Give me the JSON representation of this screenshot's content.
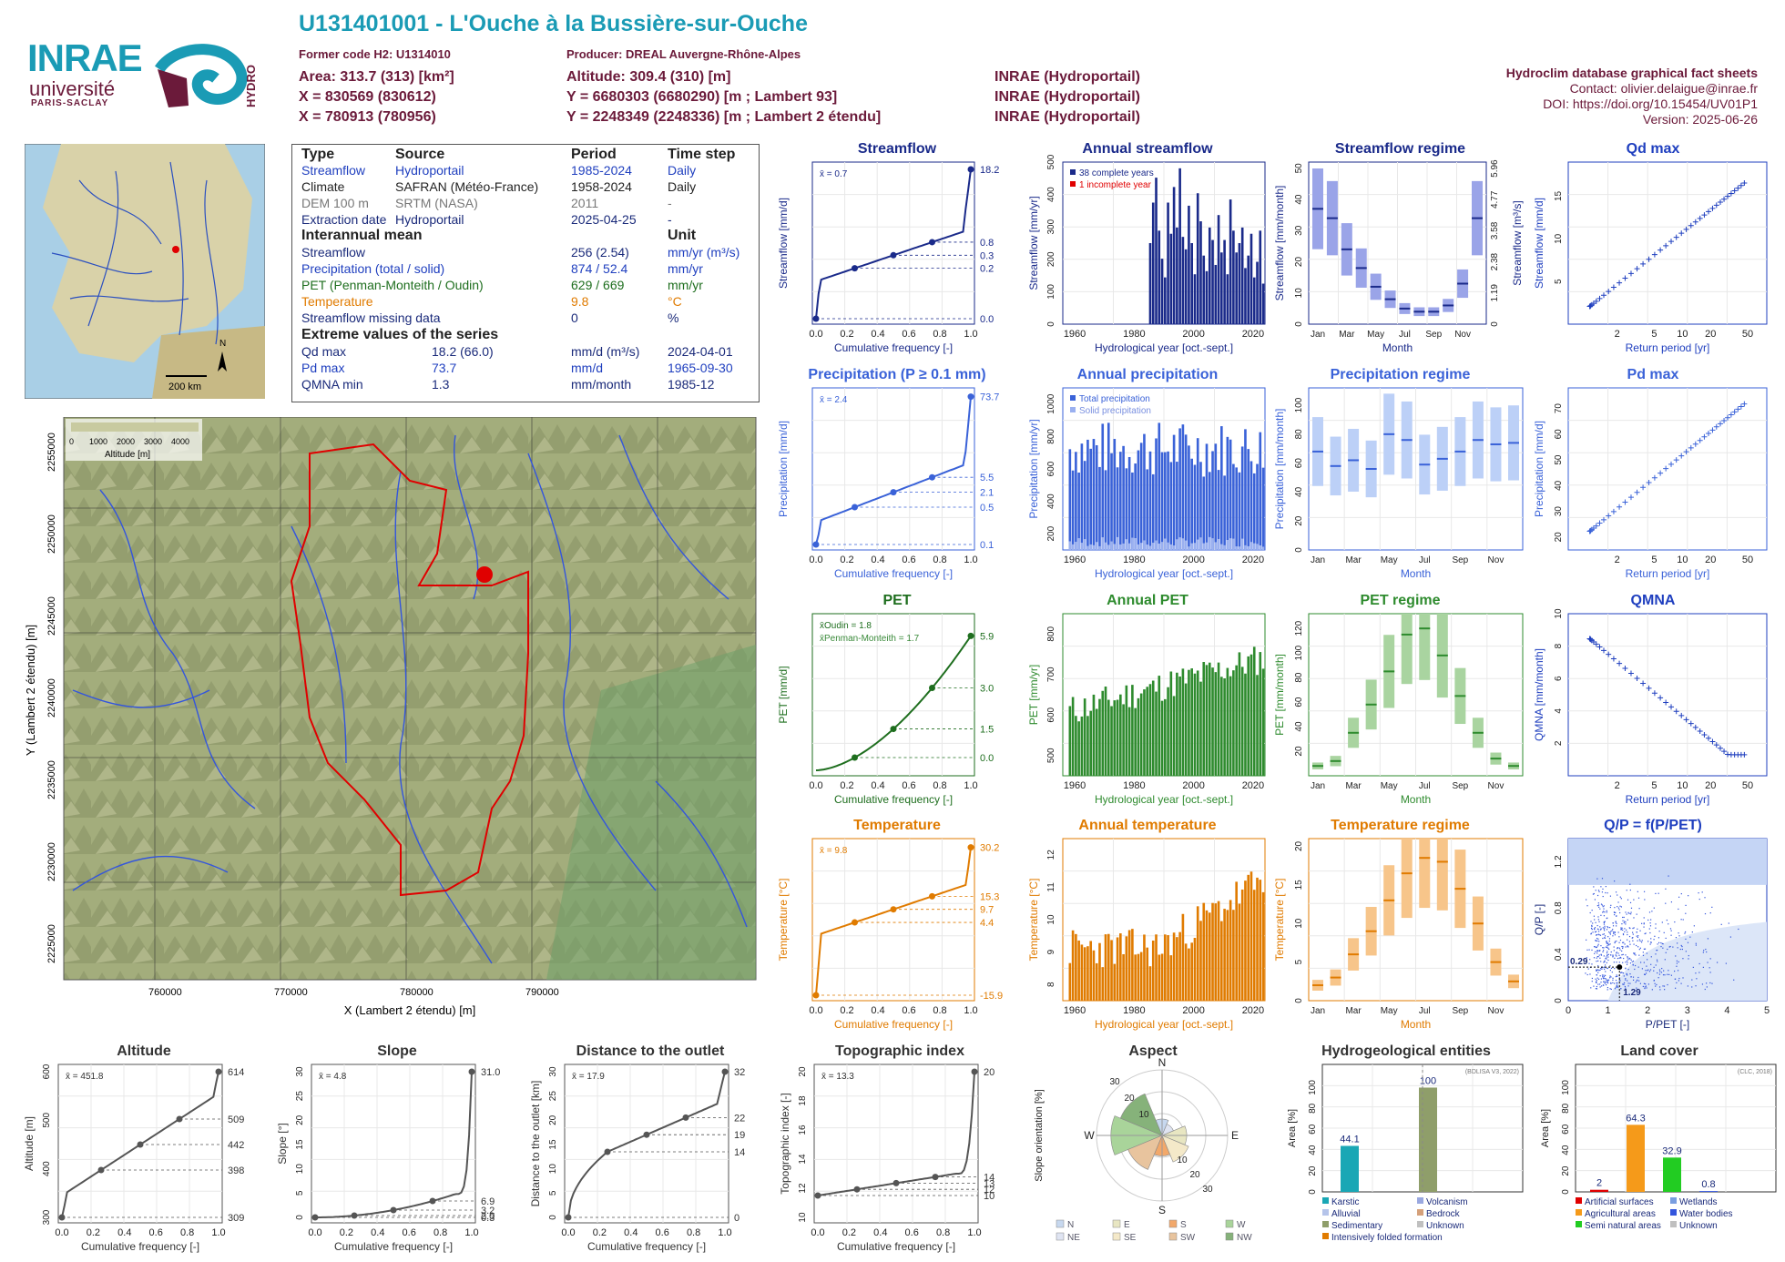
{
  "header": {
    "title": "U131401001 - L'Ouche à la Bussière-sur-Ouche",
    "former_code": "Former code H2: U1314010",
    "producer": "Producer: DREAL Auvergne-Rhône-Alpes",
    "area": "Area: 313.7 (313) [km²]",
    "x93": "X = 830569 (830612)",
    "x2e": "X = 780913 (780956)",
    "altitude": "Altitude: 309.4 (310) [m]",
    "y93": "Y = 6680303 (6680290) [m ; Lambert 93]",
    "y2e": "Y = 2248349 (2248336) [m ; Lambert 2 étendu]",
    "src1": "INRAE (Hydroportail)",
    "src2": "INRAE (Hydroportail)",
    "src3": "INRAE (Hydroportail)",
    "db_title": "Hydroclim database graphical fact sheets",
    "contact": "Contact: olivier.delaigue@inrae.fr",
    "doi": "DOI: https://doi.org/10.15454/UV01P1",
    "version": "Version: 2025-06-26",
    "logo_inrae": "INRAE",
    "logo_univ": "université",
    "logo_ps": "PARIS-SACLAY",
    "logo_hydro": "HYDRO"
  },
  "info": {
    "h_type": "Type",
    "h_source": "Source",
    "h_period": "Period",
    "h_timestep": "Time step",
    "rows": [
      {
        "type": "Streamflow",
        "source": "Hydroportail",
        "period": "1985-2024",
        "step": "Daily"
      },
      {
        "type": "Climate",
        "source": "SAFRAN (Météo-France)",
        "period": "1958-2024",
        "step": "Daily"
      },
      {
        "type": "DEM 100 m",
        "source": "SRTM (NASA)",
        "period": "2011",
        "step": "-"
      },
      {
        "type": "Extraction date",
        "source": "Hydroportail",
        "period": "2025-04-25",
        "step": "-"
      }
    ],
    "h_interannual": "Interannual mean",
    "h_unit": "Unit",
    "mean_rows": [
      {
        "label": "Streamflow",
        "value": "256 (2.54)",
        "unit": "mm/yr (m³/s)"
      },
      {
        "label": "Precipitation (total / solid)",
        "value": "874 / 52.4",
        "unit": "mm/yr"
      },
      {
        "label": "PET (Penman-Monteith / Oudin)",
        "value": "629 / 669",
        "unit": "mm/yr"
      },
      {
        "label": "Temperature",
        "value": "9.8",
        "unit": "°C"
      },
      {
        "label": "Streamflow missing data",
        "value": "0",
        "unit": "%"
      }
    ],
    "h_extreme": "Extreme values of the series",
    "ext_rows": [
      {
        "label": "Qd max",
        "value": "18.2 (66.0)",
        "unit": "mm/d (m³/s)",
        "date": "2024-04-01"
      },
      {
        "label": "Pd max",
        "value": "73.7",
        "unit": "mm/d",
        "date": "1965-09-30"
      },
      {
        "label": "QMNA min",
        "value": "1.3",
        "unit": "mm/month",
        "date": "1985-12"
      }
    ]
  },
  "map_small": {
    "scale": "200 km",
    "north": "N"
  },
  "map_big": {
    "xlabel": "X (Lambert 2 étendu) [m]",
    "ylabel": "Y (Lambert 2 étendu) [m]",
    "xticks": [
      "760000",
      "770000",
      "780000",
      "790000"
    ],
    "yticks": [
      "2225000",
      "2230000",
      "2235000",
      "2240000",
      "2245000",
      "2250000",
      "2255000"
    ],
    "legend_title": "Altitude [m]",
    "legend_ticks": [
      "0",
      "1000",
      "2000",
      "3000",
      "4000"
    ]
  },
  "chart_data": [
    {
      "id": "streamflow",
      "type": "line",
      "title": "Streamflow",
      "xlabel": "Cumulative frequency [-]",
      "ylabel": "Streamflow [mm/d]",
      "mean": "x̄ = 0.7",
      "right_ticks": [
        "18.2",
        "0.8",
        "0.3",
        "0.2",
        "0.0"
      ],
      "color": "#1a2a8a"
    },
    {
      "id": "annual_streamflow",
      "type": "bar",
      "title": "Annual streamflow",
      "xlabel": "Hydrological year [oct.-sept.]",
      "ylabel": "Streamflow [mm/yr]",
      "legend": [
        "38 complete years",
        "1 incomplete year"
      ],
      "yticks": [
        "0",
        "100",
        "200",
        "300",
        "400",
        "500"
      ],
      "xticks": [
        "1960",
        "1980",
        "2000",
        "2020"
      ],
      "x_start": 1985,
      "values": [
        260,
        390,
        470,
        300,
        210,
        150,
        390,
        290,
        440,
        310,
        500,
        280,
        240,
        380,
        260,
        160,
        420,
        330,
        220,
        170,
        310,
        270,
        190,
        350,
        230,
        270,
        160,
        400,
        300,
        230,
        260,
        310,
        180,
        220,
        290,
        150,
        200,
        300,
        130
      ],
      "color": "#1a2a8a"
    },
    {
      "id": "streamflow_regime",
      "type": "box",
      "title": "Streamflow regime",
      "xlabel": "Month",
      "ylabel": "Streamflow [mm/month]",
      "right_label": "Streamflow [m³/s]",
      "right_ticks": [
        "0",
        "1.19",
        "2.38",
        "3.58",
        "4.77",
        "5.96"
      ],
      "yticks": [
        "0",
        "10",
        "20",
        "30",
        "40",
        "50"
      ],
      "months": [
        "Jan",
        "Mar",
        "May",
        "Jul",
        "Sep",
        "Nov"
      ],
      "medians": [
        37,
        34,
        24,
        18,
        12,
        8,
        5,
        4,
        4,
        6,
        13,
        34
      ],
      "color": "#1a2a8a"
    },
    {
      "id": "qd_max",
      "type": "scatter",
      "title": "Qd max",
      "xlabel": "Return period [yr]",
      "ylabel": "Streamflow [mm/d]",
      "xticks": [
        "2",
        "5",
        "10",
        "20",
        "50"
      ],
      "yticks": [
        "5",
        "10",
        "15"
      ],
      "color": "#1f3fbf"
    },
    {
      "id": "precipitation",
      "type": "line",
      "title": "Precipitation (P ≥ 0.1 mm)",
      "xlabel": "Cumulative frequency [-]",
      "ylabel": "Precipitation [mm/d]",
      "mean": "x̄ = 2.4",
      "right_ticks": [
        "73.7",
        "5.5",
        "2.1",
        "0.5",
        "0.1"
      ],
      "color": "#3a62d8"
    },
    {
      "id": "annual_precipitation",
      "type": "bar",
      "title": "Annual precipitation",
      "xlabel": "Hydrological year [oct.-sept.]",
      "ylabel": "Precipitation [mm/yr]",
      "legend": [
        "Total precipitation",
        "Solid precipitation"
      ],
      "yticks": [
        "200",
        "400",
        "600",
        "800",
        "1000"
      ],
      "xticks": [
        "1960",
        "1980",
        "2000",
        "2020"
      ],
      "x_start": 1958,
      "color": "#3a62d8"
    },
    {
      "id": "precipitation_regime",
      "type": "box",
      "title": "Precipitation regime",
      "xlabel": "Month",
      "ylabel": "Precipitation [mm/month]",
      "yticks": [
        "0",
        "20",
        "40",
        "60",
        "80",
        "100"
      ],
      "months": [
        "Jan",
        "Mar",
        "May",
        "Jul",
        "Sep",
        "Nov"
      ],
      "medians": [
        68,
        58,
        62,
        56,
        80,
        76,
        59,
        63,
        68,
        76,
        73,
        74
      ],
      "color": "#3a62d8"
    },
    {
      "id": "pd_max",
      "type": "scatter",
      "title": "Pd max",
      "xlabel": "Return period [yr]",
      "ylabel": "Precipitation [mm/d]",
      "xticks": [
        "2",
        "5",
        "10",
        "20",
        "50"
      ],
      "yticks": [
        "20",
        "30",
        "40",
        "50",
        "60",
        "70"
      ],
      "color": "#3a62d8"
    },
    {
      "id": "pet",
      "type": "line",
      "title": "PET",
      "xlabel": "Cumulative frequency [-]",
      "ylabel": "PET [mm/d]",
      "mean": "x̄Oudin = 1.8",
      "mean2": "x̄Penman-Monteith = 1.7",
      "right_ticks": [
        "5.9",
        "3.0",
        "1.5",
        "0.0"
      ],
      "color": "#1e6e1e"
    },
    {
      "id": "annual_pet",
      "type": "bar",
      "title": "Annual PET",
      "xlabel": "Hydrological year [oct.-sept.]",
      "ylabel": "PET [mm/yr]",
      "yticks": [
        "500",
        "600",
        "700",
        "800"
      ],
      "xticks": [
        "1960",
        "1980",
        "2000",
        "2020"
      ],
      "x_start": 1958,
      "color": "#2e8b2e"
    },
    {
      "id": "pet_regime",
      "type": "box",
      "title": "PET regime",
      "xlabel": "Month",
      "ylabel": "PET [mm/month]",
      "yticks": [
        "20",
        "40",
        "60",
        "80",
        "100",
        "120"
      ],
      "months": [
        "Jan",
        "Mar",
        "May",
        "Jul",
        "Sep",
        "Nov"
      ],
      "medians": [
        8,
        12,
        35,
        58,
        85,
        115,
        120,
        98,
        65,
        35,
        14,
        8
      ],
      "color": "#2e8b2e"
    },
    {
      "id": "qmna",
      "type": "scatter",
      "title": "QMNA",
      "xlabel": "Return period [yr]",
      "ylabel": "QMNA [mm/month]",
      "xticks": [
        "2",
        "5",
        "10",
        "20",
        "50"
      ],
      "yticks": [
        "2",
        "4",
        "6",
        "8",
        "10"
      ],
      "color": "#1f3fbf"
    },
    {
      "id": "temperature",
      "type": "line",
      "title": "Temperature",
      "xlabel": "Cumulative frequency [-]",
      "ylabel": "Temperature [°C]",
      "mean": "x̄ = 9.8",
      "right_ticks": [
        "30.2",
        "15.3",
        "9.7",
        "4.4",
        "-15.9"
      ],
      "color": "#e07b00"
    },
    {
      "id": "annual_temperature",
      "type": "bar",
      "title": "Annual temperature",
      "xlabel": "Hydrological year [oct.-sept.]",
      "ylabel": "Temperature [°C]",
      "yticks": [
        "8",
        "9",
        "10",
        "11",
        "12"
      ],
      "xticks": [
        "1960",
        "1980",
        "2000",
        "2020"
      ],
      "x_start": 1958,
      "color": "#e07b00"
    },
    {
      "id": "temperature_regime",
      "type": "box",
      "title": "Temperature regime",
      "xlabel": "Month",
      "ylabel": "Temperature [°C]",
      "yticks": [
        "0",
        "5",
        "10",
        "15",
        "20"
      ],
      "months": [
        "Jan",
        "Mar",
        "May",
        "Jul",
        "Sep",
        "Nov"
      ],
      "medians": [
        2,
        3,
        6,
        9,
        13,
        16.5,
        18.5,
        18,
        14.5,
        10,
        5,
        2.5
      ],
      "color": "#e07b00"
    },
    {
      "id": "qp",
      "type": "scatter",
      "title": "Q/P = f(P/PET)",
      "xlabel": "P/PET [-]",
      "ylabel": "Q/P [-]",
      "xticks": [
        "0",
        "1",
        "2",
        "3",
        "4",
        "5"
      ],
      "yticks": [
        "0",
        "0.4",
        "0.8",
        "1.2"
      ],
      "annot": [
        "0.29",
        "1.29"
      ],
      "color": "#1f3fbf"
    },
    {
      "id": "altitude",
      "type": "line",
      "title": "Altitude",
      "xlabel": "Cumulative frequency [-]",
      "ylabel": "Altitude [m]",
      "mean": "x̄ = 451.8",
      "right_ticks": [
        "614",
        "509",
        "442",
        "398",
        "309"
      ],
      "yticks": [
        "300",
        "400",
        "500",
        "600"
      ],
      "color": "#555555"
    },
    {
      "id": "slope",
      "type": "line",
      "title": "Slope",
      "xlabel": "Cumulative frequency [-]",
      "ylabel": "Slope [°]",
      "mean": "x̄ = 4.8",
      "right_ticks": [
        "31.0",
        "6.9",
        "3.2",
        "2.0",
        "0.3"
      ],
      "yticks": [
        "0",
        "5",
        "10",
        "15",
        "20",
        "25",
        "30"
      ],
      "color": "#555555"
    },
    {
      "id": "distance",
      "type": "line",
      "title": "Distance to the outlet",
      "xlabel": "Cumulative frequency [-]",
      "ylabel": "Distance to the outlet [km]",
      "mean": "x̄ = 17.9",
      "right_ticks": [
        "32",
        "22",
        "19",
        "14",
        "0"
      ],
      "yticks": [
        "0",
        "5",
        "10",
        "15",
        "20",
        "25",
        "30"
      ],
      "color": "#555555"
    },
    {
      "id": "topographic",
      "type": "line",
      "title": "Topographic index",
      "xlabel": "Cumulative frequency [-]",
      "ylabel": "Topographic index [-]",
      "mean": "x̄ = 13.3",
      "right_ticks": [
        "20",
        "14",
        "13",
        "12",
        "10"
      ],
      "yticks": [
        "10",
        "12",
        "14",
        "16",
        "18",
        "20"
      ],
      "color": "#555555"
    },
    {
      "id": "aspect",
      "type": "pie",
      "title": "Aspect",
      "ylabel": "Slope orientation [%]",
      "dirs": [
        "N",
        "E",
        "S",
        "W"
      ],
      "rings": [
        "10",
        "20",
        "30"
      ],
      "legend": [
        "N",
        "E",
        "S",
        "W",
        "NE",
        "SE",
        "SW",
        "NW"
      ]
    },
    {
      "id": "hydrogeology",
      "type": "bar",
      "title": "Hydrogeological entities",
      "source": "(BDLISA V3, 2022)",
      "ylabel": "Area [%]",
      "values": [
        44.1,
        100
      ],
      "labels": [
        "44.1",
        "100"
      ],
      "yticks": [
        "0",
        "20",
        "40",
        "60",
        "80",
        "100"
      ],
      "legend": [
        "Karstic",
        "Volcanism",
        "Alluvial",
        "Bedrock",
        "Sedimentary",
        "Unknown",
        "Intensively folded formation"
      ]
    },
    {
      "id": "landcover",
      "type": "bar",
      "title": "Land cover",
      "source": "(CLC, 2018)",
      "ylabel": "Area [%]",
      "values": [
        2,
        64.3,
        32.9,
        0.8
      ],
      "labels": [
        "2",
        "64.3",
        "32.9",
        "0.8"
      ],
      "yticks": [
        "0",
        "20",
        "40",
        "60",
        "80",
        "100"
      ],
      "legend": [
        "Artificial surfaces",
        "Wetlands",
        "Agricultural areas",
        "Water bodies",
        "Semi natural areas",
        "Unknown"
      ]
    }
  ]
}
